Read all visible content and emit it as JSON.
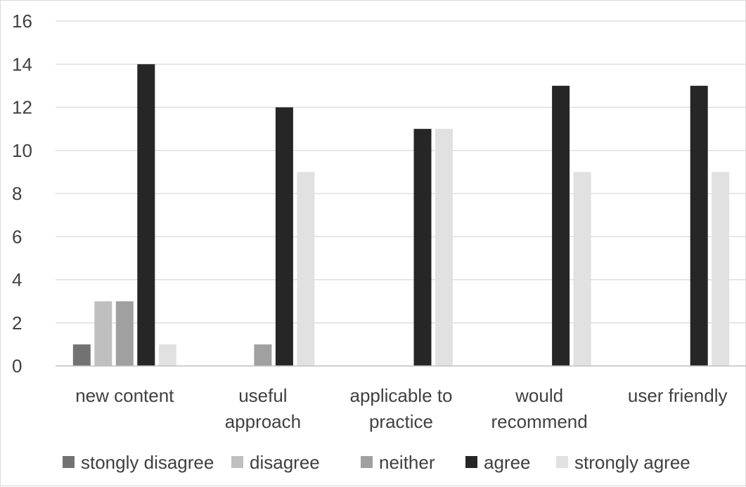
{
  "chart_data": {
    "type": "bar",
    "title": "",
    "xlabel": "",
    "ylabel": "",
    "ylim": [
      0,
      16
    ],
    "yticks": [
      "0",
      "2",
      "4",
      "6",
      "8",
      "10",
      "12",
      "14",
      "16"
    ],
    "grid": true,
    "legend_position": "bottom",
    "categories": [
      [
        "new content"
      ],
      [
        "useful",
        "approach"
      ],
      [
        "applicable to",
        "practice"
      ],
      [
        "would",
        "recommend"
      ],
      [
        "user friendly"
      ]
    ],
    "series": [
      {
        "name": "stongly disagree",
        "color": "#727272",
        "values": [
          1,
          0,
          0,
          0,
          0
        ]
      },
      {
        "name": "disagree",
        "color": "#bfbfbf",
        "values": [
          3,
          0,
          0,
          0,
          0
        ]
      },
      {
        "name": "neither",
        "color": "#a0a0a0",
        "values": [
          3,
          1,
          0,
          0,
          0
        ]
      },
      {
        "name": "agree",
        "color": "#262626",
        "values": [
          14,
          12,
          11,
          13,
          13
        ]
      },
      {
        "name": "strongly agree",
        "color": "#e1e1e1",
        "values": [
          1,
          9,
          11,
          9,
          9
        ]
      }
    ]
  }
}
